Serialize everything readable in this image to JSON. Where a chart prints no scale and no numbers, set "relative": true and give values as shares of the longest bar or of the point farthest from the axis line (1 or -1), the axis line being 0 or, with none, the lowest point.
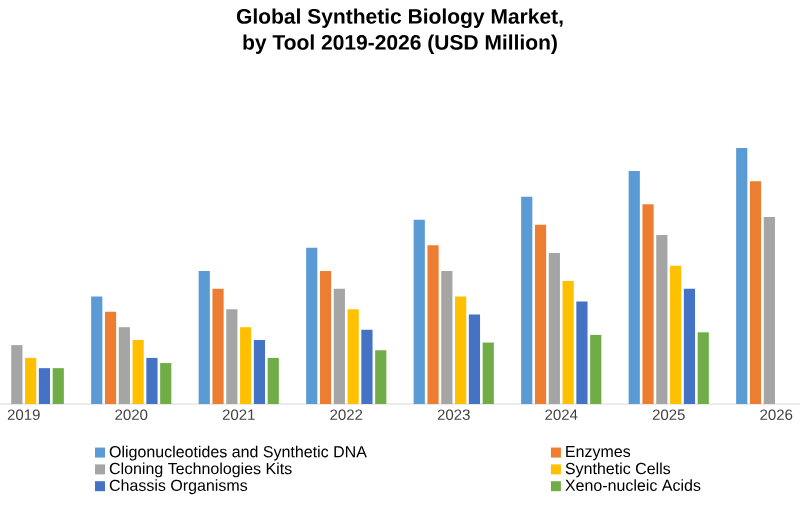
{
  "chart_data": {
    "type": "bar",
    "title": "Global Synthetic Biology Market,\nby Tool 2019-2026 (USD Million)",
    "relative": true,
    "legend": "bottom",
    "categories": [
      "2019",
      "2020",
      "2021",
      "2022",
      "2023",
      "2024",
      "2025",
      "2026"
    ],
    "series": [
      {
        "name": "Oligonucleotides and Synthetic DNA",
        "color": "#5b9bd5",
        "values": [
          null,
          0.42,
          0.52,
          0.61,
          0.72,
          0.81,
          0.91,
          1
        ]
      },
      {
        "name": "Enzymes",
        "color": "#ed7d31",
        "values": [
          null,
          0.36,
          0.45,
          0.52,
          0.62,
          0.7,
          0.78,
          0.87
        ]
      },
      {
        "name": "Cloning Technologies Kits",
        "color": "#a5a5a5",
        "values": [
          0.23,
          0.3,
          0.37,
          0.45,
          0.52,
          0.59,
          0.66,
          0.73
        ]
      },
      {
        "name": "Synthetic Cells",
        "color": "#ffc000",
        "values": [
          0.18,
          0.25,
          0.3,
          0.37,
          0.42,
          0.48,
          0.54,
          null
        ]
      },
      {
        "name": "Chassis Organisms",
        "color": "#4472c4",
        "values": [
          0.14,
          0.18,
          0.25,
          0.29,
          0.35,
          0.4,
          0.45,
          null
        ]
      },
      {
        "name": "Xeno-nucleic Acids",
        "color": "#70ad47",
        "values": [
          0.14,
          0.16,
          0.18,
          0.21,
          0.24,
          0.27,
          0.28,
          null
        ]
      }
    ]
  }
}
